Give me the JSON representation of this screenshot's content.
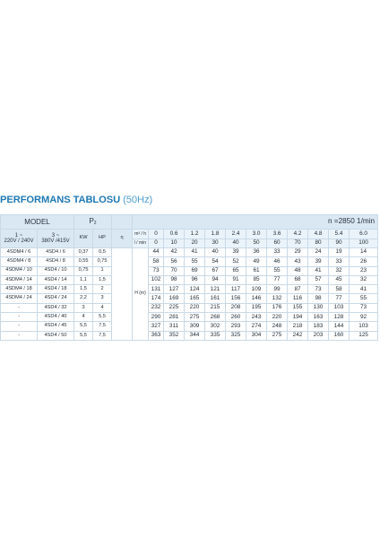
{
  "title": {
    "main": "PERFORMANS TABLOSU",
    "frequency": "(50Hz)"
  },
  "header": {
    "model": "MODEL",
    "power_symbol": "P",
    "power_subscript": "2",
    "speed": "n =2850 1/min",
    "single_phase_label": "1 ~",
    "single_phase_voltage": "220V / 240V",
    "three_phase_label": "3 ~",
    "three_phase_voltage": "380V /415V",
    "kw": "KW",
    "hp": "HP",
    "efficiency_symbol": "η",
    "flow_m3h_unit": "m³ / h",
    "flow_lmin_unit": "l / min",
    "head_label": "H (m)"
  },
  "flow_m3h": [
    "0",
    "0.6",
    "1.2",
    "1.8",
    "2.4",
    "3.0",
    "3.6",
    "4.2",
    "4.8",
    "5.4",
    "6.0"
  ],
  "flow_lmin": [
    "0",
    "10",
    "20",
    "30",
    "40",
    "50",
    "60",
    "70",
    "80",
    "90",
    "100"
  ],
  "rows": [
    {
      "single": "4SDM4 / 6",
      "three": "4SD4 / 6",
      "kw": "0,37",
      "hp": "0,5",
      "heads": [
        "44",
        "42",
        "41",
        "40",
        "39",
        "36",
        "33",
        "29",
        "24",
        "19",
        "14"
      ]
    },
    {
      "single": "4SDM4 / 8",
      "three": "4SD4 / 8",
      "kw": "0,55",
      "hp": "0,75",
      "heads": [
        "58",
        "56",
        "55",
        "54",
        "52",
        "49",
        "46",
        "43",
        "39",
        "33",
        "26"
      ]
    },
    {
      "single": "4SDM4 / 10",
      "three": "4SD4 / 10",
      "kw": "0,75",
      "hp": "1",
      "heads": [
        "73",
        "70",
        "69",
        "67",
        "65",
        "61",
        "55",
        "48",
        "41",
        "32",
        "23"
      ]
    },
    {
      "single": "4SDM4 / 14",
      "three": "4SD4 / 14",
      "kw": "1,1",
      "hp": "1,5",
      "heads": [
        "102",
        "98",
        "96",
        "94",
        "91",
        "85",
        "77",
        "68",
        "57",
        "45",
        "32"
      ]
    },
    {
      "single": "4SDM4 / 18",
      "three": "4SD4 / 18",
      "kw": "1,5",
      "hp": "2",
      "heads": [
        "131",
        "127",
        "124",
        "121",
        "117",
        "109",
        "99",
        "87",
        "73",
        "58",
        "41"
      ]
    },
    {
      "single": "4SDM4 / 24",
      "three": "4SD4 / 24",
      "kw": "2,2",
      "hp": "3",
      "heads": [
        "174",
        "169",
        "165",
        "161",
        "156",
        "146",
        "132",
        "116",
        "98",
        "77",
        "55"
      ]
    },
    {
      "single": "-",
      "three": "4SD4 / 32",
      "kw": "3",
      "hp": "4",
      "heads": [
        "232",
        "225",
        "220",
        "215",
        "208",
        "195",
        "176",
        "155",
        "130",
        "103",
        "73"
      ]
    },
    {
      "single": "-",
      "three": "4SD4 / 40",
      "kw": "4",
      "hp": "5,5",
      "heads": [
        "290",
        "281",
        "275",
        "268",
        "260",
        "243",
        "220",
        "194",
        "163",
        "128",
        "92"
      ]
    },
    {
      "single": "-",
      "three": "4SD4 / 45",
      "kw": "5,5",
      "hp": "7,5",
      "heads": [
        "327",
        "311",
        "309",
        "302",
        "293",
        "274",
        "248",
        "218",
        "183",
        "144",
        "103"
      ]
    },
    {
      "single": "-",
      "three": "4SD4 / 50",
      "kw": "5,5",
      "hp": "7,5",
      "heads": [
        "363",
        "352",
        "344",
        "335",
        "325",
        "304",
        "275",
        "242",
        "203",
        "160",
        "125"
      ]
    }
  ],
  "colors": {
    "title_blue": "#1f79b5",
    "header_fill": "#d9e8f3",
    "grid_line": "#c9d9e6",
    "accent_red": "#d12f2f"
  }
}
